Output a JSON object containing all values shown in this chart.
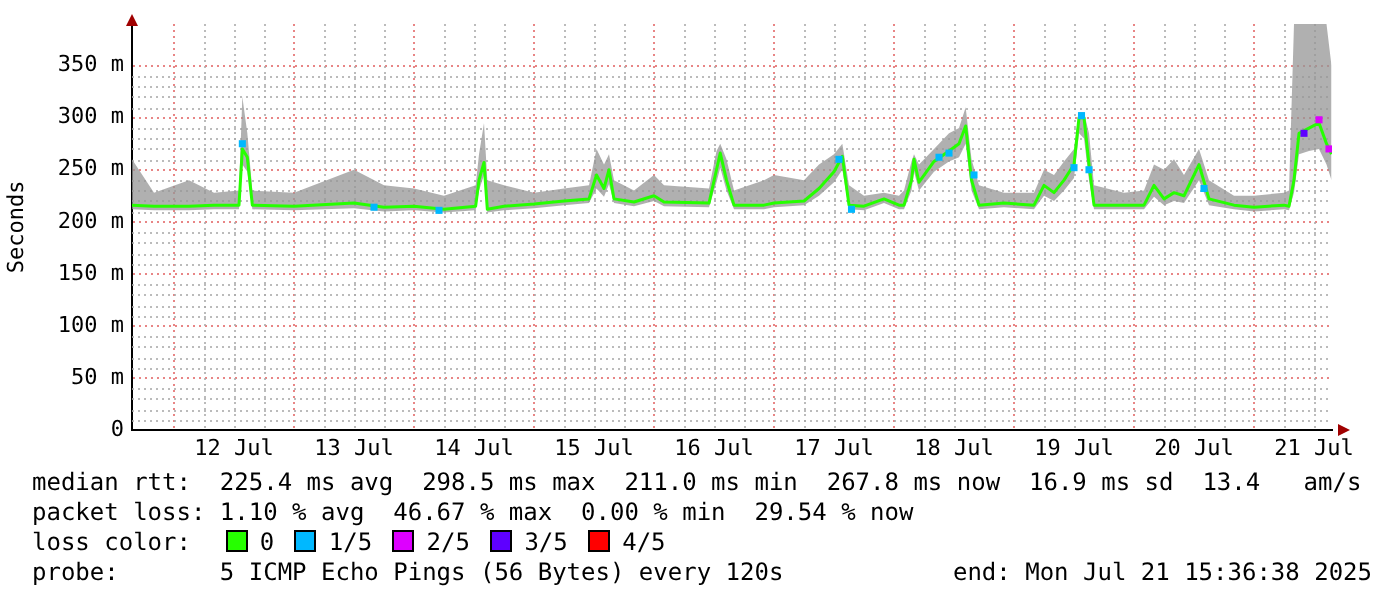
{
  "chart_data": {
    "type": "line",
    "ylabel": "Seconds",
    "legend_title": "loss color:",
    "legend": "bottom",
    "grid": true,
    "xlim": [
      "2025-07-11T15:36",
      "2025-07-21T15:36"
    ],
    "xticks": [
      {
        "value": "2025-07-12T00:00",
        "label": null
      },
      {
        "value": "2025-07-12T12:00",
        "label": "12 Jul"
      },
      {
        "value": "2025-07-13T00:00",
        "label": null
      },
      {
        "value": "2025-07-13T12:00",
        "label": "13 Jul"
      },
      {
        "value": "2025-07-14T00:00",
        "label": null
      },
      {
        "value": "2025-07-14T12:00",
        "label": "14 Jul"
      },
      {
        "value": "2025-07-15T00:00",
        "label": null
      },
      {
        "value": "2025-07-15T12:00",
        "label": "15 Jul"
      },
      {
        "value": "2025-07-16T00:00",
        "label": null
      },
      {
        "value": "2025-07-16T12:00",
        "label": "16 Jul"
      },
      {
        "value": "2025-07-17T00:00",
        "label": null
      },
      {
        "value": "2025-07-17T12:00",
        "label": "17 Jul"
      },
      {
        "value": "2025-07-18T00:00",
        "label": null
      },
      {
        "value": "2025-07-18T12:00",
        "label": "18 Jul"
      },
      {
        "value": "2025-07-19T00:00",
        "label": null
      },
      {
        "value": "2025-07-19T12:00",
        "label": "19 Jul"
      },
      {
        "value": "2025-07-20T00:00",
        "label": null
      },
      {
        "value": "2025-07-20T12:00",
        "label": "20 Jul"
      },
      {
        "value": "2025-07-21T00:00",
        "label": null
      },
      {
        "value": "2025-07-21T12:00",
        "label": "21 Jul"
      }
    ],
    "ylim": [
      0,
      390
    ],
    "yticks": [
      0,
      {
        "value": 50,
        "label": "50 m"
      },
      {
        "value": 100,
        "label": "100 m"
      },
      {
        "value": 150,
        "label": "150 m"
      },
      {
        "value": 200,
        "label": "200 m"
      },
      {
        "value": 250,
        "label": "250 m"
      },
      {
        "value": 300,
        "label": "300 m"
      },
      {
        "value": 350,
        "label": "350 m"
      }
    ],
    "annotations": [
      "median rtt:  225.4 ms avg  298.5 ms max  211.0 ms min  267.8 ms now  16.9 ms sd  13.4   am/s",
      "packet loss: 1.10 % avg  46.67 % max  0.00 % min  29.54 % now",
      "probe:       5 ICMP Echo Pings (56 Bytes) every 120s",
      "end: Mon Jul 21 15:36:38 2025"
    ],
    "series": [
      {
        "name": "0",
        "color": "#26ff00",
        "x": [
          "2025-07-11T15:36",
          "2025-07-11T20:00",
          "2025-07-12T03:00",
          "2025-07-12T08:00",
          "2025-07-12T13:00",
          "2025-07-12T13:40",
          "2025-07-12T14:40",
          "2025-07-12T15:40",
          "2025-07-13T00:00",
          "2025-07-13T12:00",
          "2025-07-13T18:00",
          "2025-07-14T00:00",
          "2025-07-14T06:00",
          "2025-07-14T12:20",
          "2025-07-14T13:00",
          "2025-07-14T14:00",
          "2025-07-14T14:40",
          "2025-07-14T18:00",
          "2025-07-15T00:00",
          "2025-07-15T06:00",
          "2025-07-15T11:00",
          "2025-07-15T12:30",
          "2025-07-15T14:00",
          "2025-07-15T15:00",
          "2025-07-15T16:00",
          "2025-07-15T20:00",
          "2025-07-16T00:00",
          "2025-07-16T02:00",
          "2025-07-16T11:00",
          "2025-07-16T12:30",
          "2025-07-16T13:15",
          "2025-07-16T14:30",
          "2025-07-16T16:00",
          "2025-07-16T22:00",
          "2025-07-17T00:00",
          "2025-07-17T06:00",
          "2025-07-17T09:00",
          "2025-07-17T12:00",
          "2025-07-17T13:40",
          "2025-07-17T15:00",
          "2025-07-17T18:00",
          "2025-07-17T22:00",
          "2025-07-18T01:00",
          "2025-07-18T02:00",
          "2025-07-18T03:30",
          "2025-07-18T04:00",
          "2025-07-18T05:00",
          "2025-07-18T08:00",
          "2025-07-18T11:00",
          "2025-07-18T13:00",
          "2025-07-18T14:20",
          "2025-07-18T15:30",
          "2025-07-18T17:00",
          "2025-07-18T22:00",
          "2025-07-19T04:00",
          "2025-07-19T06:00",
          "2025-07-19T08:00",
          "2025-07-19T10:00",
          "2025-07-19T12:00",
          "2025-07-19T13:00",
          "2025-07-19T14:00",
          "2025-07-19T15:00",
          "2025-07-19T16:00",
          "2025-07-19T22:00",
          "2025-07-20T02:00",
          "2025-07-20T04:00",
          "2025-07-20T06:00",
          "2025-07-20T08:00",
          "2025-07-20T10:00",
          "2025-07-20T13:00",
          "2025-07-20T15:00",
          "2025-07-20T20:00",
          "2025-07-21T00:00",
          "2025-07-21T06:00",
          "2025-07-21T07:00",
          "2025-07-21T08:00",
          "2025-07-21T09:00",
          "2025-07-21T11:00",
          "2025-07-21T13:00",
          "2025-07-21T14:30",
          "2025-07-21T15:30"
        ],
        "values": [
          216,
          215,
          215,
          216,
          216,
          270,
          262,
          216,
          215,
          218,
          214,
          215,
          212,
          215,
          240,
          257,
          212,
          215,
          217,
          220,
          222,
          245,
          232,
          250,
          222,
          219,
          225,
          219,
          218,
          250,
          266,
          240,
          216,
          216,
          218,
          220,
          232,
          248,
          263,
          216,
          215,
          222,
          216,
          216,
          240,
          260,
          238,
          258,
          268,
          275,
          292,
          240,
          216,
          218,
          216,
          235,
          228,
          240,
          255,
          300,
          300,
          255,
          216,
          216,
          216,
          235,
          222,
          228,
          225,
          255,
          222,
          216,
          214,
          216,
          215,
          240,
          285,
          290,
          295,
          275,
          265
        ],
        "lower": [
          212,
          211,
          211,
          212,
          212,
          255,
          248,
          212,
          211,
          213,
          210,
          211,
          209,
          211,
          230,
          245,
          209,
          211,
          213,
          216,
          218,
          232,
          224,
          236,
          218,
          215,
          220,
          215,
          214,
          238,
          252,
          230,
          212,
          212,
          214,
          216,
          225,
          238,
          250,
          212,
          211,
          218,
          212,
          212,
          230,
          248,
          230,
          248,
          258,
          262,
          275,
          230,
          212,
          214,
          212,
          225,
          220,
          230,
          242,
          285,
          280,
          240,
          212,
          212,
          212,
          224,
          216,
          220,
          218,
          240,
          216,
          212,
          210,
          212,
          211,
          228,
          265,
          268,
          270,
          255,
          240
        ],
        "upper": [
          260,
          228,
          240,
          228,
          230,
          320,
          285,
          230,
          228,
          250,
          235,
          232,
          225,
          235,
          265,
          295,
          240,
          235,
          228,
          232,
          235,
          270,
          255,
          265,
          240,
          230,
          245,
          235,
          232,
          268,
          275,
          260,
          230,
          240,
          245,
          240,
          255,
          265,
          275,
          235,
          225,
          228,
          225,
          230,
          258,
          265,
          255,
          270,
          285,
          290,
          310,
          260,
          235,
          228,
          228,
          250,
          245,
          258,
          270,
          305,
          305,
          285,
          235,
          228,
          230,
          255,
          250,
          260,
          245,
          270,
          240,
          225,
          225,
          228,
          230,
          390,
          390,
          390,
          390,
          390,
          350
        ]
      },
      {
        "name": "1/5",
        "type": "scatter",
        "marker": "square",
        "color": "#00b8ff",
        "x": [
          "2025-07-12T13:40",
          "2025-07-13T16:00",
          "2025-07-14T05:00",
          "2025-07-17T13:00",
          "2025-07-17T15:30",
          "2025-07-18T09:00",
          "2025-07-18T11:00",
          "2025-07-18T16:00",
          "2025-07-19T12:00",
          "2025-07-19T13:30",
          "2025-07-19T15:00",
          "2025-07-20T14:00"
        ],
        "values": [
          275,
          214,
          211,
          260,
          212,
          262,
          266,
          245,
          252,
          302,
          250,
          232
        ]
      },
      {
        "name": "2/5",
        "type": "scatter",
        "marker": "square",
        "color": "#dd00ff",
        "x": [
          "2025-07-21T13:00",
          "2025-07-21T15:00"
        ],
        "values": [
          298,
          270
        ]
      },
      {
        "name": "3/5",
        "type": "scatter",
        "marker": "square",
        "color": "#5e00ff",
        "x": [
          "2025-07-21T10:00"
        ],
        "values": [
          285
        ]
      },
      {
        "name": "4/5",
        "type": "scatter",
        "marker": "square",
        "color": "#ff0000"
      }
    ]
  }
}
